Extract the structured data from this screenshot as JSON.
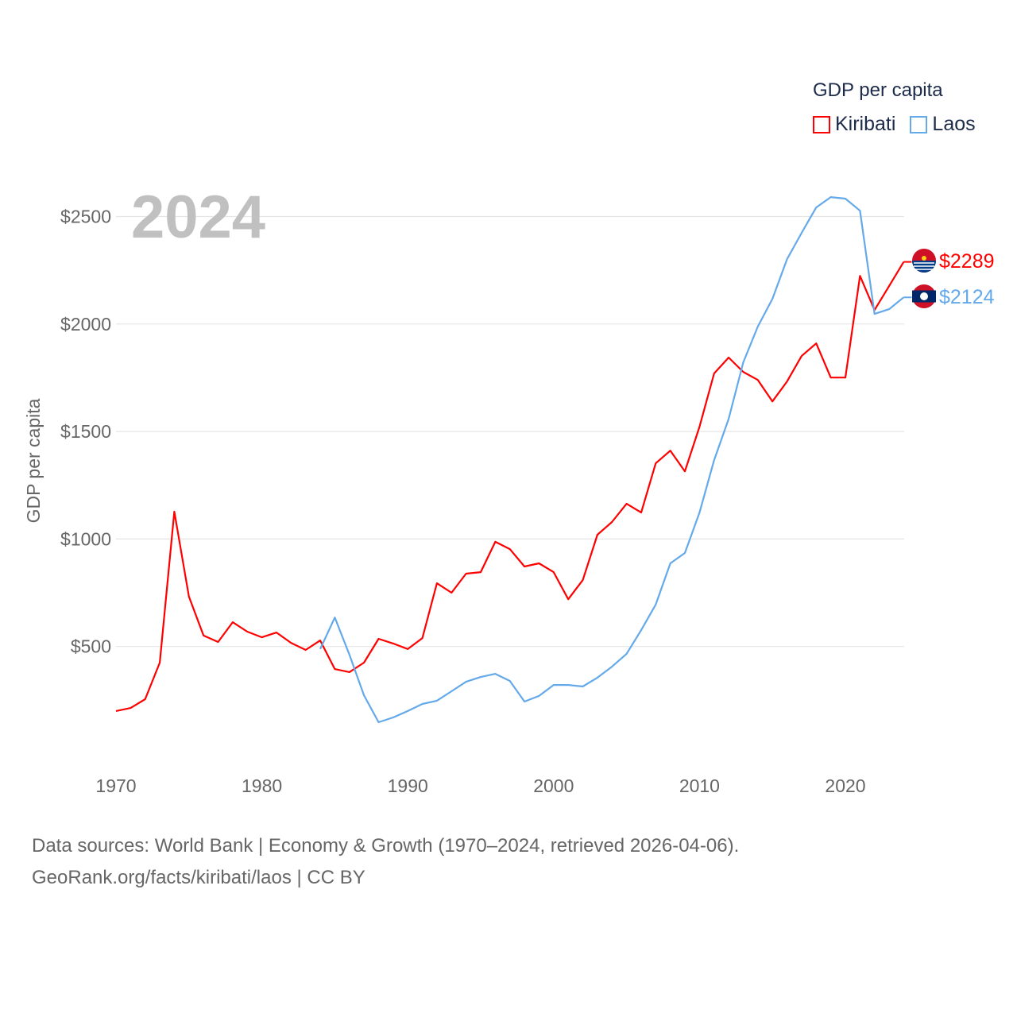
{
  "chart_data": {
    "type": "line",
    "title": "GDP per capita",
    "year_label": "2024",
    "xlabel": "",
    "ylabel": "GDP per capita",
    "xlim": [
      1970,
      2024
    ],
    "ylim": [
      0,
      2700
    ],
    "x_ticks": [
      1970,
      1980,
      1990,
      2000,
      2010,
      2020
    ],
    "y_ticks": [
      500,
      1000,
      1500,
      2000,
      2500
    ],
    "y_tick_labels": [
      "$500",
      "$1000",
      "$1500",
      "$2000",
      "$2500"
    ],
    "grid": true,
    "legend_position": "top-right",
    "series": [
      {
        "name": "Kiribati",
        "color": "#ff0000",
        "end_label": "$2289",
        "x": [
          1970,
          1971,
          1972,
          1973,
          1974,
          1975,
          1976,
          1977,
          1978,
          1979,
          1980,
          1981,
          1982,
          1983,
          1984,
          1985,
          1986,
          1987,
          1988,
          1989,
          1990,
          1991,
          1992,
          1993,
          1994,
          1995,
          1996,
          1997,
          1998,
          1999,
          2000,
          2001,
          2002,
          2003,
          2004,
          2005,
          2006,
          2007,
          2008,
          2009,
          2010,
          2011,
          2012,
          2013,
          2014,
          2015,
          2016,
          2017,
          2018,
          2019,
          2020,
          2021,
          2022,
          2023,
          2024
        ],
        "values": [
          200,
          214,
          255,
          425,
          1127,
          732,
          551,
          521,
          613,
          569,
          543,
          565,
          517,
          484,
          528,
          395,
          381,
          425,
          536,
          514,
          488,
          539,
          794,
          750,
          839,
          846,
          987,
          953,
          872,
          887,
          846,
          720,
          809,
          1020,
          1079,
          1164,
          1123,
          1352,
          1411,
          1315,
          1522,
          1770,
          1844,
          1777,
          1740,
          1640,
          1733,
          1851,
          1910,
          1751,
          1751,
          2224,
          2065,
          2177,
          2289
        ]
      },
      {
        "name": "Laos",
        "color": "#64a9ea",
        "end_label": "$2124",
        "x": [
          1984,
          1985,
          1986,
          1987,
          1988,
          1989,
          1990,
          1991,
          1992,
          1993,
          1994,
          1995,
          1996,
          1997,
          1998,
          1999,
          2000,
          2001,
          2002,
          2003,
          2004,
          2005,
          2006,
          2007,
          2008,
          2009,
          2010,
          2011,
          2012,
          2013,
          2014,
          2015,
          2016,
          2017,
          2018,
          2019,
          2020,
          2021,
          2022,
          2023,
          2024
        ],
        "values": [
          488,
          635,
          462,
          273,
          148,
          170,
          200,
          233,
          248,
          292,
          336,
          358,
          373,
          340,
          244,
          270,
          321,
          321,
          314,
          355,
          406,
          466,
          576,
          695,
          887,
          935,
          1123,
          1367,
          1559,
          1822,
          1988,
          2117,
          2302,
          2424,
          2542,
          2590,
          2583,
          2527,
          2047,
          2069,
          2124
        ]
      }
    ]
  },
  "footer": {
    "line1": "Data sources: World Bank | Economy & Growth (1970–2024, retrieved 2026-04-06).",
    "line2": "GeoRank.org/facts/kiribati/laos | CC BY"
  }
}
